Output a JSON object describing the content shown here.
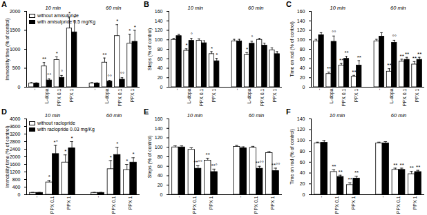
{
  "chart_data": [
    {
      "type": "bar",
      "title": "A",
      "ylabel": "Immobility time (% of control)",
      "ylim": [
        0,
        2000
      ],
      "yticks": [
        0,
        500,
        1000,
        1500,
        2000
      ],
      "groups": [
        "10 min",
        "60 min"
      ],
      "categories": [
        "-",
        "L-dopa",
        "PPX 0.1",
        "PPX 1"
      ],
      "legend": "top-left",
      "series": [
        {
          "name": "without amisulpride",
          "color": "#ffffff",
          "values": [
            [
              100,
              550,
              720,
              1550
            ],
            [
              100,
              650,
              1350,
              1150
            ]
          ],
          "errors": [
            [
              20,
              100,
              80,
              300
            ],
            [
              20,
              120,
              300,
              250
            ]
          ],
          "annotations": [
            [
              null,
              "**",
              "*",
              "*"
            ],
            [
              null,
              "**",
              "*",
              "*"
            ]
          ]
        },
        {
          "name": "with amisulpride 0.5 mg/Kg",
          "color": "#000000",
          "values": [
            [
              100,
              180,
              250,
              1450
            ],
            [
              100,
              150,
              200,
              1200
            ]
          ],
          "errors": [
            [
              15,
              40,
              60,
              300
            ],
            [
              15,
              30,
              50,
              300
            ]
          ],
          "annotations": [
            [
              null,
              "°°",
              "°",
              "*"
            ],
            [
              null,
              "°°",
              "°°",
              "*"
            ]
          ]
        }
      ]
    },
    {
      "type": "bar",
      "title": "B",
      "ylabel": "Steps (% of control)",
      "ylim": [
        0,
        160
      ],
      "yticks": [
        0,
        20,
        40,
        60,
        80,
        100,
        120,
        140,
        160
      ],
      "groups": [
        "10 min",
        "60 min"
      ],
      "categories": [
        "-",
        "L-dopa",
        "PPX 0.1",
        "PPX 1"
      ],
      "series": [
        {
          "color": "#ffffff",
          "values": [
            [
              100,
              77,
              98,
              70
            ],
            [
              97,
              68,
              100,
              78
            ]
          ],
          "errors": [
            [
              3,
              4,
              4,
              5
            ],
            [
              4,
              5,
              3,
              5
            ]
          ],
          "annotations": [
            [
              null,
              "*",
              null,
              "*"
            ],
            [
              null,
              "*",
              null,
              null
            ]
          ]
        },
        {
          "color": "#000000",
          "values": [
            [
              108,
              98,
              93,
              55
            ],
            [
              97,
              92,
              88,
              70
            ]
          ],
          "errors": [
            [
              4,
              5,
              5,
              6
            ],
            [
              4,
              5,
              5,
              5
            ]
          ],
          "annotations": [
            [
              null,
              "°",
              null,
              "*"
            ],
            [
              null,
              "°",
              null,
              null
            ]
          ]
        }
      ]
    },
    {
      "type": "bar",
      "title": "C",
      "ylabel": "Time on rod (% of control)",
      "ylim": [
        0,
        160
      ],
      "yticks": [
        0,
        20,
        40,
        60,
        80,
        100,
        120,
        140,
        160
      ],
      "groups": [
        "10 min",
        "60 min"
      ],
      "categories": [
        "-",
        "L-dopa",
        "PPX 0.1",
        "PPX 1"
      ],
      "series": [
        {
          "color": "#ffffff",
          "values": [
            [
              97,
              28,
              46,
              22
            ],
            [
              97,
              33,
              54,
              48
            ]
          ],
          "errors": [
            [
              4,
              4,
              4,
              3
            ],
            [
              4,
              6,
              5,
              6
            ]
          ],
          "annotations": [
            [
              null,
              "**",
              "**",
              "**"
            ],
            [
              null,
              "**",
              "**",
              "**"
            ]
          ]
        },
        {
          "color": "#000000",
          "values": [
            [
              110,
              96,
              60,
              46
            ],
            [
              107,
              94,
              58,
              58
            ]
          ],
          "errors": [
            [
              5,
              12,
              5,
              10
            ],
            [
              8,
              5,
              5,
              5
            ]
          ],
          "annotations": [
            [
              null,
              "°°",
              "**",
              "**"
            ],
            [
              null,
              "°°",
              "**",
              "**"
            ]
          ]
        }
      ]
    },
    {
      "type": "bar",
      "title": "D",
      "ylabel": "Immobility time (% of control)",
      "ylim": [
        0,
        4000
      ],
      "yticks": [
        0,
        400,
        800,
        1200,
        1600,
        2000,
        2400,
        2800,
        3200,
        3600,
        4000
      ],
      "groups": [
        "10 min",
        "60 min"
      ],
      "categories": [
        "-",
        "PPX 0.1",
        "PPX 1"
      ],
      "legend": "top-left",
      "series": [
        {
          "name": "without raclopride",
          "color": "#ffffff",
          "values": [
            [
              100,
              650,
              1700
            ],
            [
              100,
              1350,
              1300
            ]
          ],
          "errors": [
            [
              20,
              100,
              400
            ],
            [
              20,
              450,
              300
            ]
          ],
          "annotations": [
            [
              null,
              "*",
              "*"
            ],
            [
              null,
              "*",
              "*"
            ]
          ]
        },
        {
          "name": "with raclopride 0.03 mg/Kg",
          "color": "#000000",
          "values": [
            [
              100,
              2150,
              2450
            ],
            [
              100,
              2100,
              1700
            ]
          ],
          "errors": [
            [
              20,
              450,
              350
            ],
            [
              20,
              400,
              250
            ]
          ],
          "annotations": [
            [
              null,
              "*°",
              "*"
            ],
            [
              null,
              "*",
              "*"
            ]
          ]
        }
      ]
    },
    {
      "type": "bar",
      "title": "E",
      "ylabel": "Steps (% of control)",
      "ylim": [
        0,
        160
      ],
      "yticks": [
        0,
        20,
        40,
        60,
        80,
        100,
        120,
        140,
        160
      ],
      "groups": [
        "10 min",
        "60 min"
      ],
      "categories": [
        "-",
        "PPX 0.1",
        "PPX 1"
      ],
      "series": [
        {
          "color": "#ffffff",
          "values": [
            [
              100,
              95,
              72
            ],
            [
              101,
              99,
              88
            ]
          ],
          "errors": [
            [
              3,
              4,
              5
            ],
            [
              3,
              3,
              3
            ]
          ],
          "annotations": [
            [
              null,
              null,
              "**"
            ],
            [
              null,
              null,
              null
            ]
          ]
        },
        {
          "color": "#000000",
          "values": [
            [
              100,
              55,
              48
            ],
            [
              98,
              55,
              50
            ]
          ],
          "errors": [
            [
              3,
              6,
              6
            ],
            [
              3,
              5,
              6
            ]
          ],
          "annotations": [
            [
              null,
              "**°°",
              "**°"
            ],
            [
              null,
              "**°°",
              "**°°"
            ]
          ]
        }
      ]
    },
    {
      "type": "bar",
      "title": "F",
      "ylabel": "Time on rod (% of control)",
      "ylim": [
        0,
        140
      ],
      "yticks": [
        0,
        20,
        40,
        60,
        80,
        100,
        120,
        140
      ],
      "groups": [
        "10 min",
        "60 min"
      ],
      "categories": [
        "-",
        "PPX 0.1",
        "PPX 1"
      ],
      "series": [
        {
          "color": "#ffffff",
          "values": [
            [
              95,
              42,
              18
            ],
            [
              95,
              46,
              38
            ]
          ],
          "errors": [
            [
              2,
              4,
              4
            ],
            [
              2,
              3,
              5
            ]
          ],
          "annotations": [
            [
              null,
              "**",
              "**"
            ],
            [
              null,
              "**",
              "**"
            ]
          ]
        },
        {
          "color": "#000000",
          "values": [
            [
              96,
              33,
              30
            ],
            [
              95,
              46,
              42
            ]
          ],
          "errors": [
            [
              4,
              3,
              4
            ],
            [
              3,
              3,
              3
            ]
          ],
          "annotations": [
            [
              null,
              "**",
              "**"
            ],
            [
              null,
              "**",
              "**"
            ]
          ]
        }
      ]
    }
  ]
}
